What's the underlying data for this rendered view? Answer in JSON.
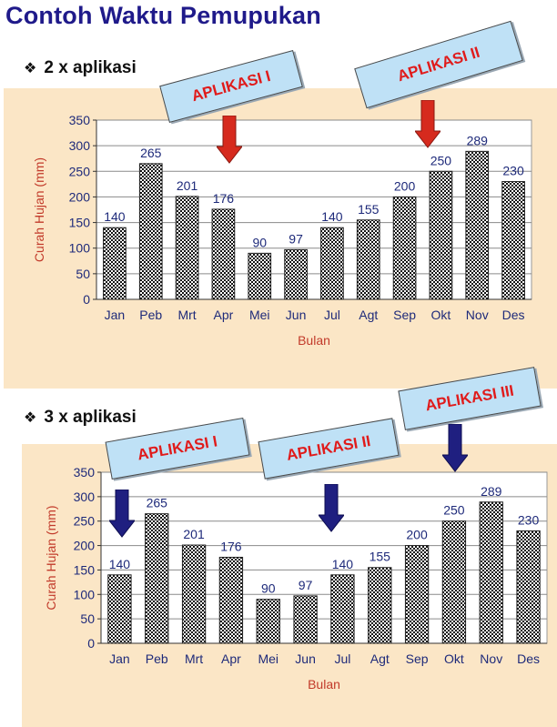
{
  "title": "Contoh Waktu Pemupukan",
  "sections": [
    {
      "bullet": "2 x aplikasi",
      "callouts": [
        "APLIKASI I",
        "APLIKASI II"
      ],
      "arrow_color": "#d62a1e"
    },
    {
      "bullet": "3 x aplikasi",
      "callouts": [
        "APLIKASI I",
        "APLIKASI II",
        "APLIKASI III"
      ],
      "arrow_color": "#1f1f80"
    }
  ],
  "chart_data": [
    {
      "type": "bar",
      "categories": [
        "Jan",
        "Peb",
        "Mrt",
        "Apr",
        "Mei",
        "Jun",
        "Jul",
        "Agt",
        "Sep",
        "Okt",
        "Nov",
        "Des"
      ],
      "values": [
        140,
        265,
        201,
        176,
        90,
        97,
        140,
        155,
        200,
        250,
        289,
        230
      ],
      "xlabel": "Bulan",
      "ylabel": "Curah Hujan (mm)",
      "ylim": [
        0,
        350
      ],
      "yticks": [
        0,
        50,
        100,
        150,
        200,
        250,
        300,
        350
      ],
      "grid": true,
      "bar_fill": "checkered"
    },
    {
      "type": "bar",
      "categories": [
        "Jan",
        "Peb",
        "Mrt",
        "Apr",
        "Mei",
        "Jun",
        "Jul",
        "Agt",
        "Sep",
        "Okt",
        "Nov",
        "Des"
      ],
      "values": [
        140,
        265,
        201,
        176,
        90,
        97,
        140,
        155,
        200,
        250,
        289,
        230
      ],
      "xlabel": "Bulan",
      "ylabel": "Curah Hujan (mm)",
      "ylim": [
        0,
        350
      ],
      "yticks": [
        0,
        50,
        100,
        150,
        200,
        250,
        300,
        350
      ],
      "grid": true,
      "bar_fill": "checkered"
    }
  ]
}
